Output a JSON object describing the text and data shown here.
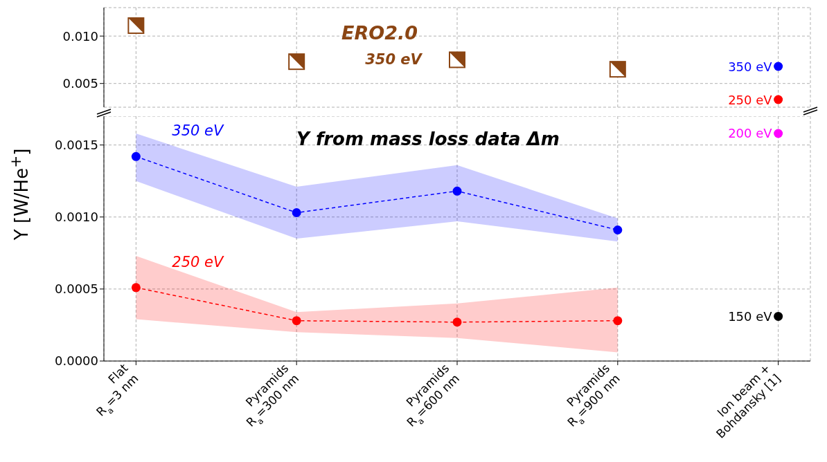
{
  "chart_data": [
    {
      "type": "scatter",
      "categories": [
        null,
        null,
        null,
        null,
        null
      ],
      "ylim": [
        0.0025,
        0.013
      ],
      "yticks": [
        {
          "value": 0.005,
          "label": "0.005"
        },
        {
          "value": 0.01,
          "label": "0.010"
        }
      ],
      "grid": true,
      "tick_labels": "y",
      "annotations": [
        "350 eV"
      ],
      "series": [
        {
          "name": "ERO2.0",
          "color": "#8b4513",
          "marker": "square",
          "values": [
            0.0111,
            0.0073,
            0.0075,
            0.0065,
            null
          ]
        },
        {
          "name": "350 eV",
          "color": "#0000ff",
          "marker": "circle",
          "values": [
            null,
            null,
            null,
            null,
            0.0068
          ]
        },
        {
          "name": "250 eV",
          "color": "#ff0000",
          "marker": "circle",
          "values": [
            null,
            null,
            null,
            null,
            0.0033
          ]
        }
      ]
    },
    {
      "type": "line",
      "title": "Y from mass loss data Δm",
      "ylabel": "Y [W/He$^{+}$]",
      "categories": [
        "Flat\nR$_{a}$=3 nm",
        "Pyramids\nR$_{a}$=300 nm",
        "Pyramids\nR$_{a}$=600 nm",
        "Pyramids\nR$_{a}$=900 nm",
        "Ion beam +\nBohdansky [1]"
      ],
      "ylim": [
        0,
        0.0017
      ],
      "yticks": [
        {
          "value": 0,
          "label": "0.0000"
        },
        {
          "value": 0.0005,
          "label": "0.0005"
        },
        {
          "value": 0.001,
          "label": "0.0010"
        },
        {
          "value": 0.0015,
          "label": "0.0015"
        }
      ],
      "grid": true,
      "series": [
        {
          "name": "350 eV",
          "color": "#0000ff",
          "marker": "circle",
          "line_style": "dashed",
          "values": [
            0.00142,
            0.00103,
            0.00118,
            0.00091,
            null
          ],
          "lower": [
            0.00125,
            0.00085,
            0.00097,
            0.00083,
            null
          ],
          "upper": [
            0.00158,
            0.00121,
            0.00136,
            0.00099,
            null
          ]
        },
        {
          "name": "250 eV",
          "color": "#ff0000",
          "marker": "circle",
          "line_style": "dashed",
          "values": [
            0.00051,
            0.00028,
            0.00027,
            0.00028,
            null
          ],
          "lower": [
            0.00029,
            0.0002,
            0.00016,
            6e-05,
            null
          ],
          "upper": [
            0.00073,
            0.00034,
            0.0004,
            0.00051,
            null
          ]
        },
        {
          "type": "scatter",
          "name": "200 eV",
          "color": "#ff00ff",
          "marker": "circle",
          "values": [
            null,
            null,
            null,
            null,
            0.00158
          ]
        },
        {
          "type": "scatter",
          "name": "150 eV",
          "color": "#000000",
          "marker": "circle",
          "values": [
            null,
            null,
            null,
            null,
            0.00031
          ]
        }
      ]
    }
  ]
}
